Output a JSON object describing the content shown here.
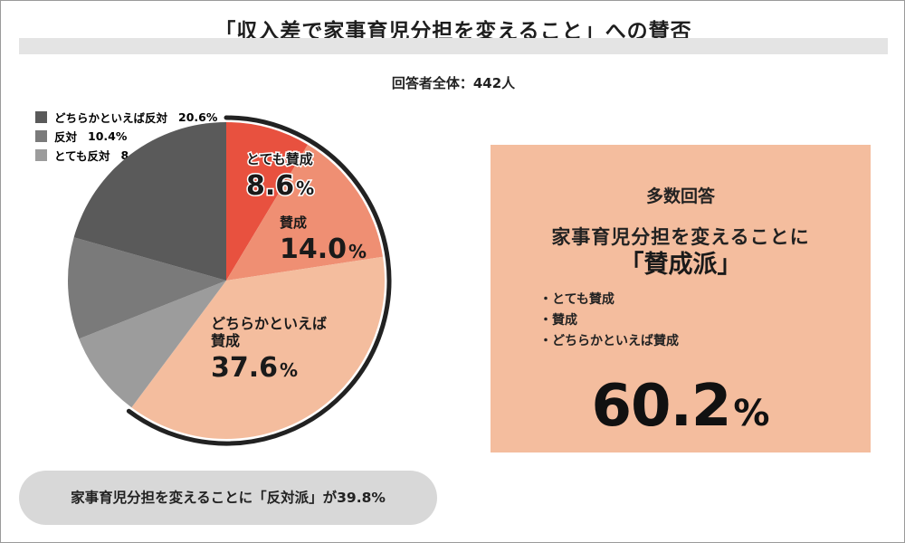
{
  "title": "「収入差で家事育児分担を変えること」への賛否",
  "subtitle": "回答者全体：442人",
  "legend": [
    {
      "label": "どちらかといえば反対",
      "value": "20.6%",
      "color": "#5a5a5a"
    },
    {
      "label": "反対",
      "value": "10.4%",
      "color": "#7a7a7a"
    },
    {
      "label": "とても反対",
      "value": "8.8%",
      "color": "#9c9c9c"
    }
  ],
  "slice_labels": [
    {
      "name": "とても賛成",
      "value": "8.6",
      "unit": "%",
      "lines": [
        "とても賛成"
      ]
    },
    {
      "name": "賛成",
      "value": "14.0",
      "unit": "%",
      "lines": [
        "賛成"
      ]
    },
    {
      "name": "どちらかといえば賛成",
      "value": "37.6",
      "unit": "%",
      "lines": [
        "どちらかといえば",
        "賛成"
      ]
    }
  ],
  "panel": {
    "heading": "多数回答",
    "line": "家事育児分担を変えることに",
    "emphasis": "「賛成派」",
    "items": [
      "・とても賛成",
      "・賛成",
      "・どちらかといえば賛成"
    ],
    "total_value": "60.2",
    "total_unit": "%"
  },
  "pill_text": "家事育児分担を変えることに「反対派」が39.8%",
  "colors": {
    "very_agree": "#e8513f",
    "agree": "#ef8f73",
    "somewhat_agree": "#f4bd9e",
    "somewhat_disagree": "#5a5a5a",
    "disagree": "#7a7a7a",
    "very_disagree": "#9c9c9c",
    "panel_bg": "#f4bd9e",
    "pill_bg": "#d8d8d8",
    "title_bar": "#e4e4e4"
  },
  "chart_data": {
    "type": "pie",
    "title": "「収入差で家事育児分担を変えること」への賛否",
    "categories": [
      "とても賛成",
      "賛成",
      "どちらかといえば賛成",
      "とても反対",
      "反対",
      "どちらかといえば反対"
    ],
    "values": [
      8.6,
      14.0,
      37.6,
      8.8,
      10.4,
      20.6
    ],
    "colors": [
      "#e8513f",
      "#ef8f73",
      "#f4bd9e",
      "#9c9c9c",
      "#7a7a7a",
      "#5a5a5a"
    ],
    "unit": "%",
    "start": "12 o'clock, clockwise",
    "highlight": "agree group (とても賛成, 賛成, どちらかといえば賛成) outlined by an outer arc",
    "legend_position": "top-left"
  }
}
